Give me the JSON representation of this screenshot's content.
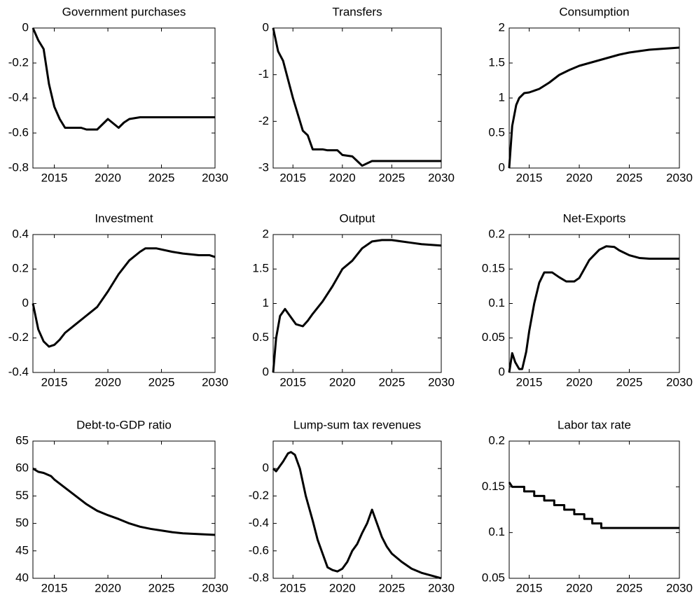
{
  "chart_data": [
    {
      "type": "line",
      "title": "Government purchases",
      "color": "#000000",
      "x": [
        2013,
        2013.5,
        2014,
        2014.5,
        2015,
        2015.5,
        2016,
        2017,
        2017.5,
        2018,
        2019,
        2020,
        2021,
        2021.5,
        2022,
        2023,
        2030
      ],
      "values": [
        0,
        -0.07,
        -0.12,
        -0.32,
        -0.45,
        -0.52,
        -0.57,
        -0.57,
        -0.57,
        -0.58,
        -0.58,
        -0.52,
        -0.57,
        -0.54,
        -0.52,
        -0.51,
        -0.51
      ],
      "xlim": [
        2013,
        2030
      ],
      "xticks": [
        2015,
        2020,
        2025,
        2030
      ],
      "ylim": [
        -0.8,
        0
      ],
      "yticks": [
        -0.8,
        -0.6,
        -0.4,
        -0.2,
        0
      ]
    },
    {
      "type": "line",
      "title": "Transfers",
      "color": "#000000",
      "x": [
        2013,
        2013.5,
        2014,
        2014.5,
        2015,
        2016,
        2016.5,
        2017,
        2018,
        2018.5,
        2019.5,
        2020,
        2021,
        2021.5,
        2022,
        2023,
        2030
      ],
      "values": [
        0,
        -0.5,
        -0.7,
        -1.1,
        -1.5,
        -2.2,
        -2.3,
        -2.6,
        -2.6,
        -2.62,
        -2.62,
        -2.72,
        -2.75,
        -2.85,
        -2.95,
        -2.85,
        -2.85
      ],
      "xlim": [
        2013,
        2030
      ],
      "xticks": [
        2015,
        2020,
        2025,
        2030
      ],
      "ylim": [
        -3,
        0
      ],
      "yticks": [
        -3,
        -2,
        -1,
        0
      ]
    },
    {
      "type": "line",
      "title": "Consumption",
      "color": "#000000",
      "x": [
        2013,
        2013.3,
        2013.7,
        2014,
        2014.5,
        2015,
        2016,
        2017,
        2018,
        2019,
        2020,
        2021,
        2022,
        2023,
        2024,
        2025,
        2026,
        2027,
        2028,
        2030
      ],
      "values": [
        0,
        0.6,
        0.9,
        1.0,
        1.07,
        1.08,
        1.13,
        1.22,
        1.33,
        1.4,
        1.46,
        1.5,
        1.54,
        1.58,
        1.62,
        1.65,
        1.67,
        1.69,
        1.7,
        1.72
      ],
      "xlim": [
        2013,
        2030
      ],
      "xticks": [
        2015,
        2020,
        2025,
        2030
      ],
      "ylim": [
        0,
        2
      ],
      "yticks": [
        0,
        0.5,
        1,
        1.5,
        2
      ]
    },
    {
      "type": "line",
      "title": "Investment",
      "color": "#000000",
      "x": [
        2013,
        2013.5,
        2014,
        2014.5,
        2015,
        2015.5,
        2016,
        2017,
        2018,
        2019,
        2020,
        2021,
        2022,
        2023,
        2023.5,
        2024.5,
        2026,
        2027,
        2028.5,
        2029.5,
        2030
      ],
      "values": [
        0,
        -0.15,
        -0.22,
        -0.25,
        -0.24,
        -0.21,
        -0.17,
        -0.12,
        -0.07,
        -0.02,
        0.07,
        0.17,
        0.25,
        0.3,
        0.32,
        0.32,
        0.3,
        0.29,
        0.28,
        0.28,
        0.27
      ],
      "xlim": [
        2013,
        2030
      ],
      "xticks": [
        2015,
        2020,
        2025,
        2030
      ],
      "ylim": [
        -0.4,
        0.4
      ],
      "yticks": [
        -0.4,
        -0.2,
        0,
        0.2,
        0.4
      ]
    },
    {
      "type": "line",
      "title": "Output",
      "color": "#000000",
      "x": [
        2013,
        2013.3,
        2013.7,
        2014.2,
        2014.7,
        2015.3,
        2016,
        2016.5,
        2017,
        2018,
        2019,
        2020,
        2021,
        2022,
        2023,
        2024,
        2025,
        2026,
        2027,
        2028,
        2029,
        2030
      ],
      "values": [
        0,
        0.5,
        0.82,
        0.92,
        0.82,
        0.7,
        0.67,
        0.75,
        0.85,
        1.03,
        1.25,
        1.5,
        1.62,
        1.8,
        1.9,
        1.92,
        1.92,
        1.9,
        1.88,
        1.86,
        1.85,
        1.84
      ],
      "xlim": [
        2013,
        2030
      ],
      "xticks": [
        2015,
        2020,
        2025,
        2030
      ],
      "ylim": [
        0,
        2
      ],
      "yticks": [
        0,
        0.5,
        1,
        1.5,
        2
      ]
    },
    {
      "type": "line",
      "title": "Net-Exports",
      "color": "#000000",
      "x": [
        2013,
        2013.3,
        2013.6,
        2014,
        2014.3,
        2014.7,
        2015,
        2015.5,
        2016,
        2016.5,
        2017.3,
        2018,
        2018.7,
        2019.5,
        2020,
        2020.5,
        2021,
        2022,
        2022.7,
        2023.5,
        2024,
        2025,
        2026,
        2027,
        2030
      ],
      "values": [
        0,
        0.028,
        0.015,
        0.005,
        0.005,
        0.03,
        0.06,
        0.1,
        0.13,
        0.145,
        0.145,
        0.138,
        0.132,
        0.132,
        0.137,
        0.15,
        0.163,
        0.178,
        0.183,
        0.182,
        0.177,
        0.17,
        0.166,
        0.165,
        0.165
      ],
      "xlim": [
        2013,
        2030
      ],
      "xticks": [
        2015,
        2020,
        2025,
        2030
      ],
      "ylim": [
        0,
        0.2
      ],
      "yticks": [
        0,
        0.05,
        0.1,
        0.15,
        0.2
      ]
    },
    {
      "type": "line",
      "title": "Debt-to-GDP ratio",
      "color": "#000000",
      "x": [
        2013,
        2013.5,
        2014,
        2014.7,
        2015,
        2016,
        2017,
        2018,
        2019,
        2020,
        2021,
        2022,
        2023,
        2024,
        2025,
        2026,
        2027,
        2028,
        2029,
        2030
      ],
      "values": [
        60,
        59.4,
        59.2,
        58.6,
        58,
        56.5,
        55,
        53.5,
        52.3,
        51.5,
        50.8,
        50,
        49.4,
        49,
        48.7,
        48.4,
        48.2,
        48.1,
        48,
        47.9
      ],
      "xlim": [
        2013,
        2030
      ],
      "xticks": [
        2015,
        2020,
        2025,
        2030
      ],
      "ylim": [
        40,
        65
      ],
      "yticks": [
        40,
        45,
        50,
        55,
        60,
        65
      ]
    },
    {
      "type": "line",
      "title": "Lump-sum tax revenues",
      "color": "#000000",
      "x": [
        2013,
        2013.3,
        2013.7,
        2014,
        2014.5,
        2014.8,
        2015.2,
        2015.7,
        2016.3,
        2017,
        2017.5,
        2018,
        2018.5,
        2019,
        2019.5,
        2020,
        2020.5,
        2021,
        2021.5,
        2022,
        2022.5,
        2023,
        2023.5,
        2024,
        2024.5,
        2025,
        2026,
        2027,
        2028,
        2029,
        2030
      ],
      "values": [
        0,
        -0.02,
        0.02,
        0.05,
        0.11,
        0.12,
        0.1,
        0,
        -0.2,
        -0.38,
        -0.52,
        -0.62,
        -0.72,
        -0.74,
        -0.75,
        -0.73,
        -0.68,
        -0.6,
        -0.55,
        -0.47,
        -0.4,
        -0.3,
        -0.4,
        -0.5,
        -0.57,
        -0.62,
        -0.68,
        -0.73,
        -0.76,
        -0.78,
        -0.8
      ],
      "xlim": [
        2013,
        2030
      ],
      "xticks": [
        2015,
        2020,
        2025,
        2030
      ],
      "ylim": [
        -0.8,
        0.2
      ],
      "yticks": [
        -0.8,
        -0.6,
        -0.4,
        -0.2,
        0
      ]
    },
    {
      "type": "line",
      "title": "Labor tax rate",
      "color": "#000000",
      "x": [
        2013,
        2013.3,
        2013.3,
        2014.5,
        2014.5,
        2015.5,
        2015.5,
        2016.5,
        2016.5,
        2017.5,
        2017.5,
        2018.5,
        2018.5,
        2019.5,
        2019.5,
        2020.5,
        2020.5,
        2021.3,
        2021.3,
        2022.2,
        2022.2,
        2030
      ],
      "values": [
        0.155,
        0.15,
        0.15,
        0.15,
        0.145,
        0.145,
        0.14,
        0.14,
        0.135,
        0.135,
        0.13,
        0.13,
        0.125,
        0.125,
        0.12,
        0.12,
        0.115,
        0.115,
        0.11,
        0.11,
        0.105,
        0.105
      ],
      "xlim": [
        2013,
        2030
      ],
      "xticks": [
        2015,
        2020,
        2025,
        2030
      ],
      "ylim": [
        0.05,
        0.2
      ],
      "yticks": [
        0.05,
        0.1,
        0.15,
        0.2
      ]
    }
  ]
}
